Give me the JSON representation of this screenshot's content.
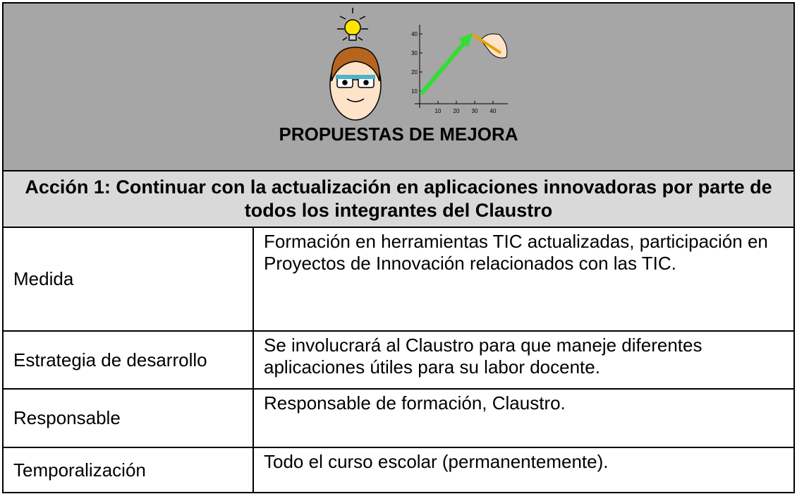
{
  "header": {
    "title": "PROPUESTAS DE MEJORA",
    "illustration": {
      "y_ticks": [
        "10",
        "20",
        "30",
        "40"
      ],
      "x_ticks": [
        "10",
        "20",
        "30",
        "40"
      ]
    }
  },
  "table": {
    "action_title": "Acción 1: Continuar con la actualización en aplicaciones innovadoras por parte de todos los integrantes del Claustro",
    "rows": [
      [
        "Medida",
        "Formación en herramientas TIC actualizadas, participación en Proyectos de Innovación relacionados con las TIC."
      ],
      [
        "Estrategia de desarrollo",
        "Se involucrará al Claustro para que maneje diferentes aplicaciones útiles para su labor docente."
      ],
      [
        "Responsable",
        "Responsable de formación, Claustro."
      ],
      [
        "Temporalización",
        "Todo el curso escolar (permanentemente)."
      ]
    ]
  }
}
